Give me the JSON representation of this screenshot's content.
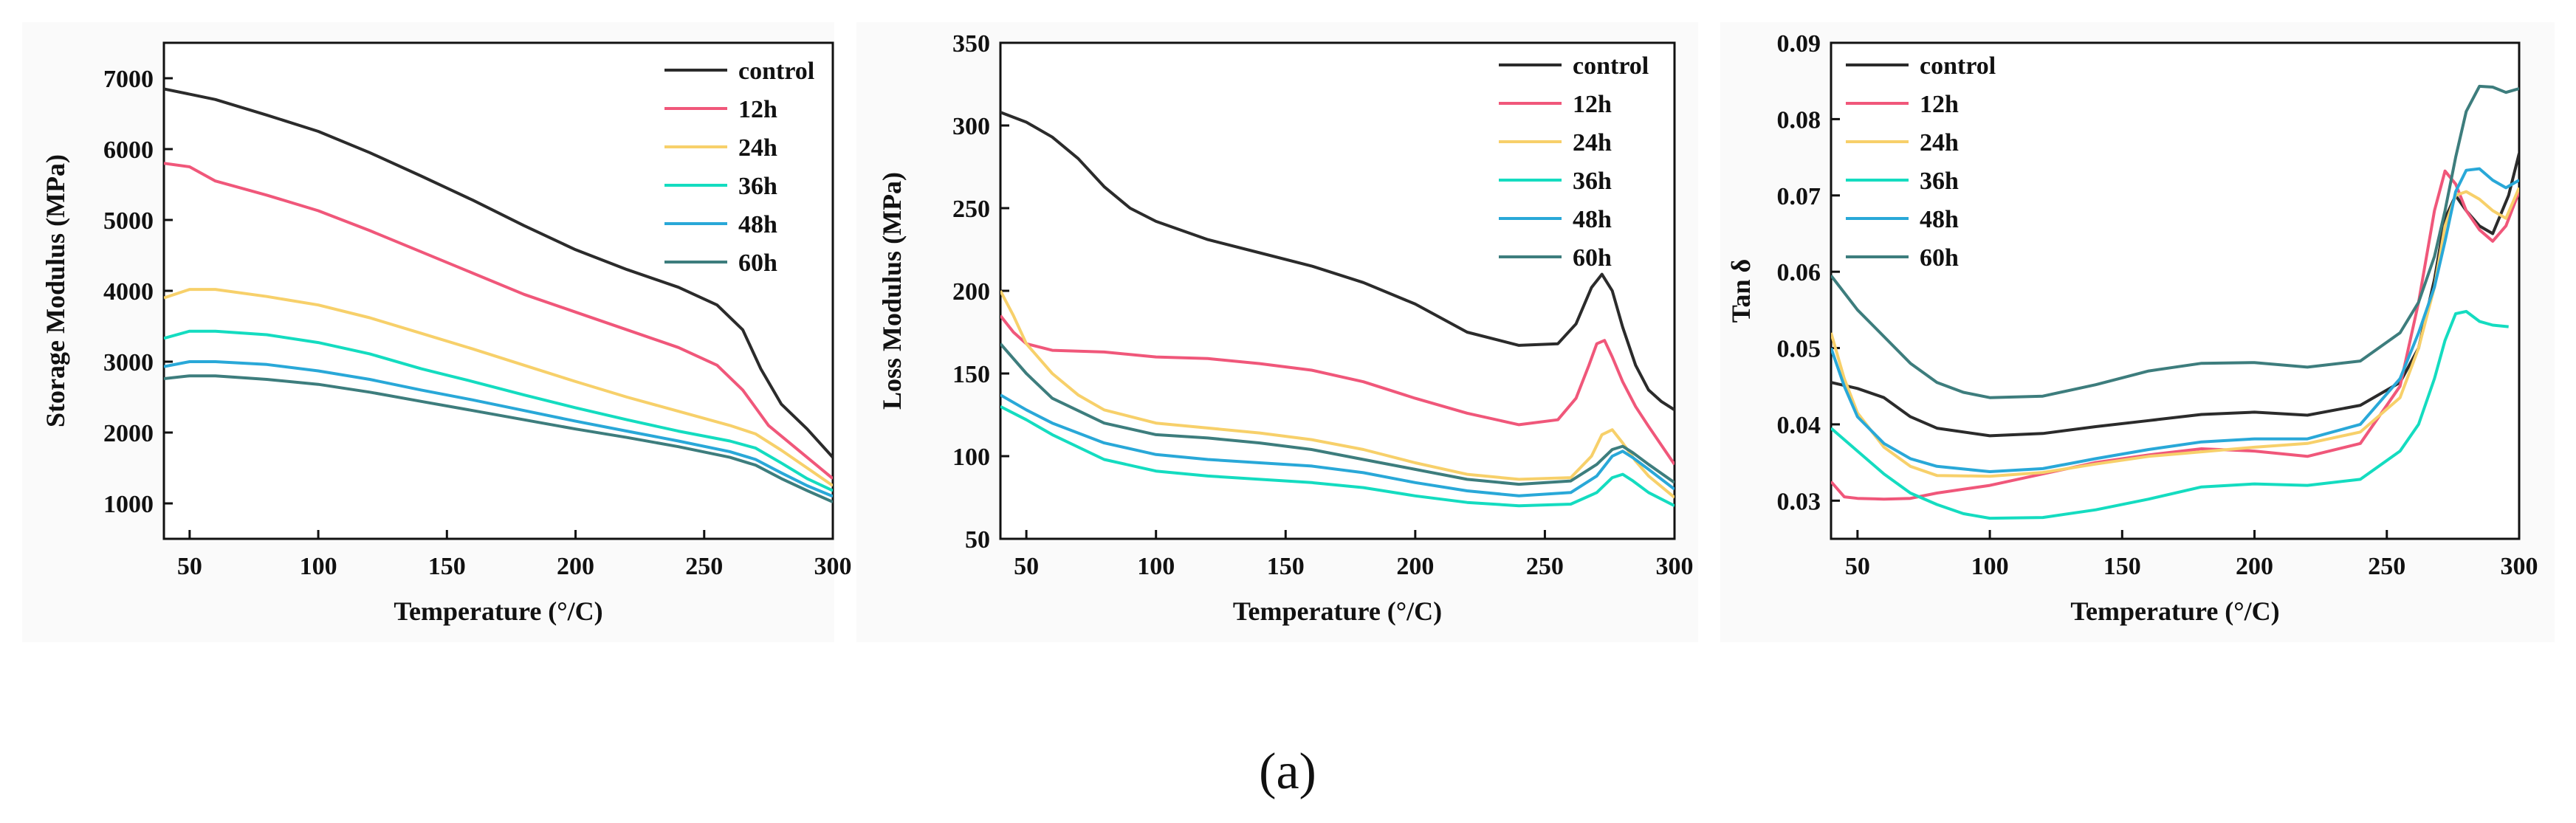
{
  "caption": "(a)",
  "series_colors": {
    "control": "#2b2b2b",
    "12h": "#f0577a",
    "24h": "#f7d06a",
    "36h": "#14dcc0",
    "48h": "#29a8d8",
    "60h": "#3d7d7d"
  },
  "chart_data": [
    {
      "type": "line",
      "title": "",
      "xlabel": "Temperature (°/C)",
      "ylabel": "Storage Modulus (MPa)",
      "xlim": [
        40,
        300
      ],
      "ylim": [
        500,
        7500
      ],
      "xticks": [
        50,
        100,
        150,
        200,
        250,
        300
      ],
      "yticks": [
        1000,
        2000,
        3000,
        4000,
        5000,
        6000,
        7000
      ],
      "legend_position": "top-right",
      "series": [
        {
          "name": "control",
          "x": [
            40,
            60,
            80,
            100,
            120,
            140,
            160,
            180,
            200,
            220,
            240,
            255,
            265,
            272,
            280,
            290,
            300
          ],
          "y": [
            6850,
            6700,
            6480,
            6250,
            5950,
            5620,
            5280,
            4920,
            4580,
            4300,
            4050,
            3800,
            3450,
            2900,
            2400,
            2050,
            1650
          ]
        },
        {
          "name": "12h",
          "x": [
            40,
            50,
            60,
            80,
            100,
            120,
            140,
            160,
            180,
            200,
            220,
            240,
            255,
            265,
            275,
            285,
            300
          ],
          "y": [
            5800,
            5750,
            5550,
            5350,
            5130,
            4850,
            4550,
            4250,
            3950,
            3700,
            3450,
            3200,
            2950,
            2600,
            2100,
            1800,
            1350
          ]
        },
        {
          "name": "24h",
          "x": [
            40,
            50,
            60,
            80,
            100,
            120,
            140,
            160,
            180,
            200,
            220,
            240,
            260,
            270,
            280,
            290,
            300
          ],
          "y": [
            3900,
            4020,
            4020,
            3920,
            3800,
            3620,
            3400,
            3180,
            2950,
            2720,
            2500,
            2300,
            2100,
            1980,
            1750,
            1500,
            1250
          ]
        },
        {
          "name": "36h",
          "x": [
            40,
            50,
            60,
            80,
            100,
            120,
            140,
            160,
            180,
            200,
            220,
            240,
            260,
            270,
            280,
            290,
            300
          ],
          "y": [
            3330,
            3430,
            3430,
            3380,
            3270,
            3110,
            2900,
            2720,
            2530,
            2350,
            2180,
            2020,
            1880,
            1780,
            1570,
            1350,
            1180
          ]
        },
        {
          "name": "48h",
          "x": [
            40,
            50,
            60,
            80,
            100,
            120,
            140,
            160,
            180,
            200,
            220,
            240,
            260,
            270,
            280,
            290,
            300
          ],
          "y": [
            2930,
            3000,
            3000,
            2960,
            2870,
            2750,
            2600,
            2460,
            2310,
            2160,
            2020,
            1880,
            1730,
            1620,
            1430,
            1250,
            1100
          ]
        },
        {
          "name": "60h",
          "x": [
            40,
            50,
            60,
            80,
            100,
            120,
            140,
            160,
            180,
            200,
            220,
            240,
            260,
            270,
            280,
            290,
            300
          ],
          "y": [
            2760,
            2800,
            2800,
            2750,
            2680,
            2570,
            2440,
            2310,
            2180,
            2050,
            1930,
            1800,
            1650,
            1540,
            1350,
            1180,
            1020
          ]
        }
      ]
    },
    {
      "type": "line",
      "title": "",
      "xlabel": "Temperature (°/C)",
      "ylabel": "Loss Modulus (MPa)",
      "xlim": [
        40,
        300
      ],
      "ylim": [
        50,
        350
      ],
      "xticks": [
        50,
        100,
        150,
        200,
        250,
        300
      ],
      "yticks": [
        50,
        100,
        150,
        200,
        250,
        300,
        350
      ],
      "legend_position": "top-right",
      "series": [
        {
          "name": "control",
          "x": [
            40,
            50,
            60,
            70,
            80,
            90,
            100,
            120,
            140,
            160,
            180,
            200,
            220,
            240,
            255,
            262,
            268,
            272,
            276,
            280,
            285,
            290,
            295,
            300
          ],
          "y": [
            308,
            302,
            293,
            280,
            263,
            250,
            242,
            231,
            223,
            215,
            205,
            192,
            175,
            167,
            168,
            180,
            202,
            210,
            200,
            178,
            155,
            140,
            133,
            128
          ]
        },
        {
          "name": "12h",
          "x": [
            40,
            45,
            50,
            60,
            80,
            100,
            120,
            140,
            160,
            180,
            200,
            220,
            240,
            255,
            262,
            267,
            270,
            273,
            276,
            280,
            285,
            290,
            300
          ],
          "y": [
            185,
            175,
            168,
            164,
            163,
            160,
            159,
            156,
            152,
            145,
            135,
            126,
            119,
            122,
            135,
            155,
            168,
            170,
            160,
            145,
            130,
            118,
            95
          ]
        },
        {
          "name": "24h",
          "x": [
            40,
            45,
            50,
            60,
            70,
            80,
            100,
            120,
            140,
            160,
            180,
            200,
            220,
            240,
            260,
            268,
            272,
            276,
            280,
            285,
            290,
            300
          ],
          "y": [
            200,
            185,
            168,
            150,
            137,
            128,
            120,
            117,
            114,
            110,
            104,
            96,
            89,
            86,
            87,
            100,
            113,
            116,
            108,
            97,
            88,
            75
          ]
        },
        {
          "name": "36h",
          "x": [
            40,
            50,
            60,
            80,
            100,
            120,
            140,
            160,
            180,
            200,
            220,
            240,
            260,
            270,
            276,
            280,
            284,
            290,
            300
          ],
          "y": [
            130,
            122,
            113,
            98,
            91,
            88,
            86,
            84,
            81,
            76,
            72,
            70,
            71,
            78,
            87,
            89,
            85,
            78,
            70
          ]
        },
        {
          "name": "48h",
          "x": [
            40,
            50,
            60,
            80,
            100,
            120,
            140,
            160,
            180,
            200,
            220,
            240,
            260,
            270,
            276,
            280,
            284,
            290,
            300
          ],
          "y": [
            137,
            128,
            120,
            108,
            101,
            98,
            96,
            94,
            90,
            84,
            79,
            76,
            78,
            88,
            100,
            103,
            99,
            92,
            80
          ]
        },
        {
          "name": "60h",
          "x": [
            40,
            50,
            60,
            80,
            100,
            120,
            140,
            160,
            180,
            200,
            220,
            240,
            260,
            270,
            276,
            280,
            284,
            290,
            300
          ],
          "y": [
            168,
            150,
            135,
            120,
            113,
            111,
            108,
            104,
            98,
            92,
            86,
            83,
            85,
            95,
            104,
            106,
            102,
            95,
            84
          ]
        }
      ]
    },
    {
      "type": "line",
      "title": "",
      "xlabel": "Temperature (°/C)",
      "ylabel": "Tan δ",
      "xlim": [
        40,
        300
      ],
      "ylim": [
        0.025,
        0.09
      ],
      "xticks": [
        50,
        100,
        150,
        200,
        250,
        300
      ],
      "yticks": [
        "0.03",
        "0.04",
        "0.05",
        "0.06",
        "0.07",
        "0.08",
        "0.09"
      ],
      "legend_position": "top-left",
      "series": [
        {
          "name": "control",
          "x": [
            40,
            50,
            60,
            70,
            80,
            100,
            120,
            140,
            160,
            180,
            200,
            220,
            240,
            255,
            262,
            268,
            272,
            276,
            280,
            285,
            290,
            296,
            300
          ],
          "y": [
            0.0455,
            0.0447,
            0.0435,
            0.041,
            0.0395,
            0.0385,
            0.0388,
            0.0397,
            0.0405,
            0.0413,
            0.0416,
            0.0412,
            0.0425,
            0.0455,
            0.05,
            0.059,
            0.067,
            0.07,
            0.068,
            0.066,
            0.065,
            0.07,
            0.0755
          ]
        },
        {
          "name": "12h",
          "x": [
            40,
            45,
            50,
            60,
            70,
            80,
            100,
            120,
            140,
            160,
            180,
            200,
            220,
            240,
            255,
            262,
            268,
            272,
            276,
            280,
            285,
            290,
            295,
            300
          ],
          "y": [
            0.0325,
            0.0305,
            0.0303,
            0.0302,
            0.0303,
            0.031,
            0.032,
            0.0335,
            0.035,
            0.036,
            0.0368,
            0.0365,
            0.0358,
            0.0375,
            0.045,
            0.056,
            0.068,
            0.0732,
            0.0715,
            0.068,
            0.0655,
            0.064,
            0.066,
            0.0705
          ]
        },
        {
          "name": "24h",
          "x": [
            40,
            45,
            50,
            60,
            70,
            80,
            100,
            120,
            140,
            160,
            180,
            200,
            220,
            240,
            255,
            262,
            268,
            272,
            276,
            280,
            285,
            290,
            295,
            300
          ],
          "y": [
            0.052,
            0.046,
            0.0415,
            0.037,
            0.0345,
            0.0333,
            0.0332,
            0.0337,
            0.0348,
            0.0358,
            0.0364,
            0.037,
            0.0375,
            0.039,
            0.0435,
            0.05,
            0.058,
            0.066,
            0.07,
            0.0705,
            0.0695,
            0.068,
            0.067,
            0.071
          ]
        },
        {
          "name": "36h",
          "x": [
            40,
            50,
            60,
            70,
            80,
            90,
            100,
            120,
            140,
            160,
            180,
            200,
            220,
            240,
            255,
            262,
            268,
            272,
            276,
            280,
            285,
            290,
            296
          ],
          "y": [
            0.0395,
            0.0365,
            0.0335,
            0.031,
            0.0295,
            0.0283,
            0.0277,
            0.0278,
            0.0288,
            0.0302,
            0.0318,
            0.0322,
            0.032,
            0.0328,
            0.0365,
            0.04,
            0.046,
            0.051,
            0.0545,
            0.0548,
            0.0535,
            0.053,
            0.0528
          ]
        },
        {
          "name": "48h",
          "x": [
            40,
            45,
            50,
            60,
            70,
            80,
            100,
            120,
            140,
            160,
            180,
            200,
            220,
            240,
            255,
            262,
            268,
            272,
            276,
            280,
            285,
            290,
            295,
            300
          ],
          "y": [
            0.05,
            0.045,
            0.041,
            0.0375,
            0.0355,
            0.0345,
            0.0338,
            0.0342,
            0.0355,
            0.0367,
            0.0377,
            0.0381,
            0.0381,
            0.04,
            0.046,
            0.052,
            0.058,
            0.064,
            0.0705,
            0.0733,
            0.0735,
            0.072,
            0.071,
            0.072
          ]
        },
        {
          "name": "60h",
          "x": [
            40,
            50,
            60,
            70,
            80,
            90,
            100,
            120,
            140,
            160,
            180,
            200,
            220,
            240,
            255,
            262,
            268,
            272,
            276,
            280,
            285,
            290,
            295,
            300
          ],
          "y": [
            0.0595,
            0.055,
            0.0515,
            0.048,
            0.0455,
            0.0442,
            0.0435,
            0.0437,
            0.0452,
            0.047,
            0.048,
            0.0481,
            0.0475,
            0.0483,
            0.052,
            0.056,
            0.062,
            0.068,
            0.075,
            0.081,
            0.0843,
            0.0842,
            0.0835,
            0.084
          ]
        }
      ]
    }
  ]
}
